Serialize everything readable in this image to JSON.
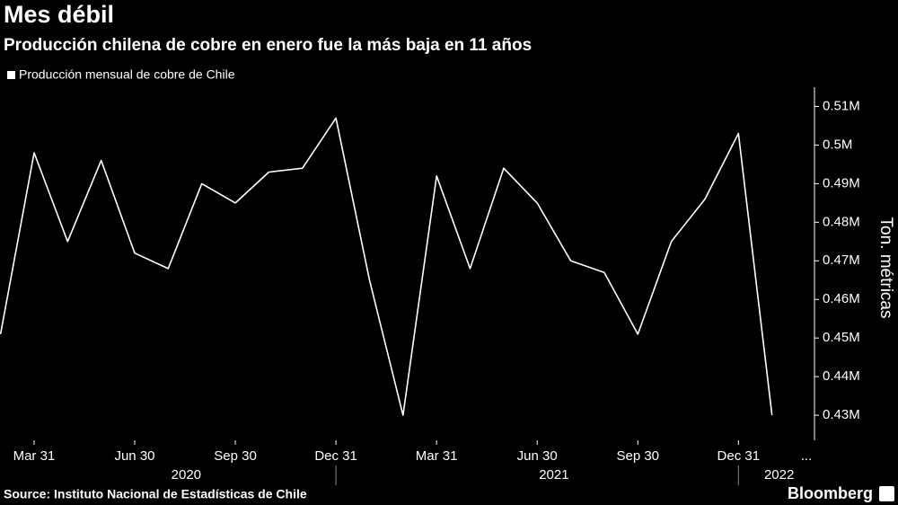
{
  "chart_data": {
    "type": "line",
    "title": "Mes débil",
    "subtitle": "Producción chilena de cobre en enero fue la más baja en 11 años",
    "y_label": "Ton. métricas",
    "source": "Source: Instituto Nacional de Estadísticas de Chile",
    "brand": "Bloomberg",
    "categories": [
      null,
      "Mar 31",
      null,
      null,
      "Jun 30",
      null,
      null,
      "Sep 30",
      null,
      null,
      "Dec 31",
      null,
      null,
      "Mar 31",
      null,
      null,
      "Jun 30",
      null,
      null,
      "Sep 30",
      null,
      null,
      "Dec 31",
      null
    ],
    "x_more_label": "...",
    "years": [
      "2020",
      "2021",
      "2022"
    ],
    "series": [
      {
        "name": "Producción mensual de cobre de Chile",
        "color": "#ffffff",
        "values": [
          451000,
          498000,
          475000,
          496000,
          472000,
          468000,
          490000,
          485000,
          493000,
          494000,
          507000,
          465000,
          430000,
          492000,
          468000,
          494000,
          485000,
          470000,
          467000,
          451000,
          475000,
          486000,
          503000,
          430000
        ]
      }
    ],
    "ylim": [
      423500,
      515000
    ],
    "yticks": [
      {
        "value": 430000,
        "label": "0.43M"
      },
      {
        "value": 440000,
        "label": "0.44M"
      },
      {
        "value": 450000,
        "label": "0.45M"
      },
      {
        "value": 460000,
        "label": "0.46M"
      },
      {
        "value": 470000,
        "label": "0.47M"
      },
      {
        "value": 480000,
        "label": "0.48M"
      },
      {
        "value": 490000,
        "label": "0.49M"
      },
      {
        "value": 500000,
        "label": "0.5M"
      },
      {
        "value": 510000,
        "label": "0.51M"
      }
    ],
    "grid": false
  }
}
